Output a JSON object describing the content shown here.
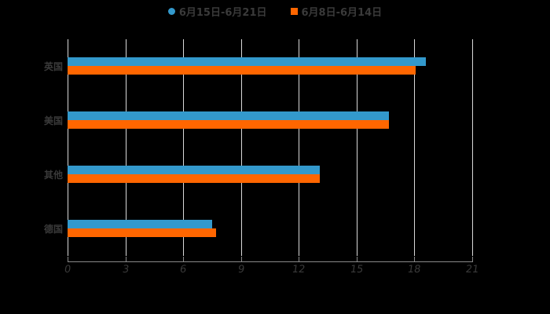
{
  "legend": {
    "items": [
      {
        "label": "6月15日-6月21日",
        "color": "#3399cc",
        "shape": "circle"
      },
      {
        "label": "6月8日-6月14日",
        "color": "#ff6600",
        "shape": "square"
      }
    ]
  },
  "axis": {
    "x_ticks": [
      "0",
      "3",
      "6",
      "9",
      "12",
      "15",
      "18",
      "21"
    ]
  },
  "categories": [
    "英国",
    "美国",
    "其他",
    "德国"
  ],
  "colors": {
    "series1": "#3399cc",
    "series2": "#ff6600",
    "background": "#000000",
    "grid": "#d9d9d9"
  },
  "chart_data": {
    "type": "bar",
    "orientation": "horizontal",
    "title": "",
    "categories": [
      "英国",
      "美国",
      "其他",
      "德国"
    ],
    "series": [
      {
        "name": "6月15日-6月21日",
        "color": "#3399cc",
        "values": [
          18.6,
          16.7,
          13.1,
          7.5
        ]
      },
      {
        "name": "6月8日-6月14日",
        "color": "#ff6600",
        "values": [
          18.1,
          16.7,
          13.1,
          7.7
        ]
      }
    ],
    "xlabel": "",
    "ylabel": "",
    "xlim": [
      0,
      21
    ],
    "x_ticks": [
      0,
      3,
      6,
      9,
      12,
      15,
      18,
      21
    ],
    "grid": true,
    "legend_position": "top"
  }
}
